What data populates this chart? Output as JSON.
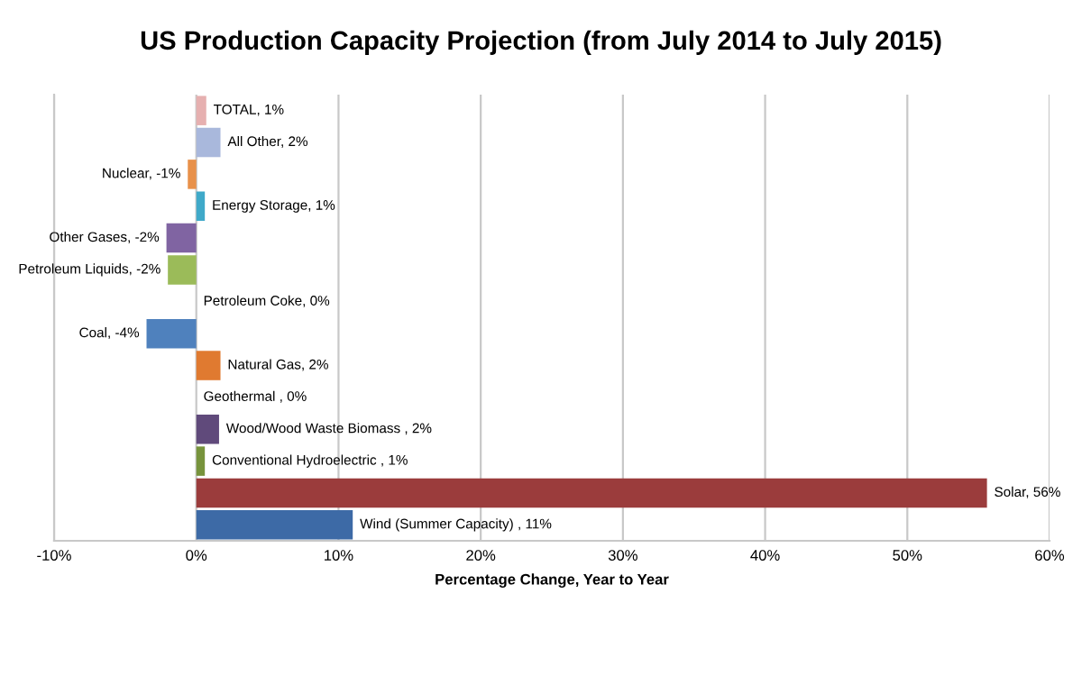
{
  "chart_data": {
    "type": "bar",
    "orientation": "horizontal",
    "title": "US Production Capacity Projection (from July 2014 to July 2015)",
    "xlabel": "Percentage Change, Year to Year",
    "categories": [
      null,
      null,
      null,
      null,
      null,
      null,
      null,
      null,
      null,
      null,
      null,
      null,
      null,
      null
    ],
    "values": [
      0.7,
      1.7,
      -0.6,
      0.6,
      -2.1,
      -2.0,
      0,
      -3.5,
      1.7,
      0,
      1.6,
      0.6,
      55.6,
      11.0
    ],
    "colors": [
      "#e6b0b0",
      "#a9b8dc",
      "#e8914a",
      "#3fa9c9",
      "#8064a2",
      "#9bbb59",
      "#4f81bd",
      "#4f81bd",
      "#e07a30",
      "#4bacc6",
      "#604a7b",
      "#77933c",
      "#9b3c3c",
      "#3d6aa6"
    ],
    "value_labels": [
      "TOTAL, 1%",
      "All Other, 2%",
      "Nuclear, -1%",
      "Energy Storage, 1%",
      "Other Gases, -2%",
      "Petroleum Liquids, -2%",
      "Petroleum Coke, 0%",
      "Coal, -4%",
      "Natural Gas, 2%",
      "Geothermal , 0%",
      "Wood/Wood Waste Biomass , 2%",
      "Conventional Hydroelectric , 1%",
      "Solar, 56%",
      "Wind (Summer Capacity) , 11%"
    ],
    "xlim": [
      -10,
      60
    ],
    "xticks": [
      {
        "value": -10,
        "label": "-10%"
      },
      {
        "value": 0,
        "label": "0%"
      },
      {
        "value": 10,
        "label": "10%"
      },
      {
        "value": 20,
        "label": "20%"
      },
      {
        "value": 30,
        "label": "30%"
      },
      {
        "value": 40,
        "label": "40%"
      },
      {
        "value": 50,
        "label": "50%"
      },
      {
        "value": 60,
        "label": "60%"
      }
    ],
    "grid": "x",
    "tick_labels": "x"
  }
}
